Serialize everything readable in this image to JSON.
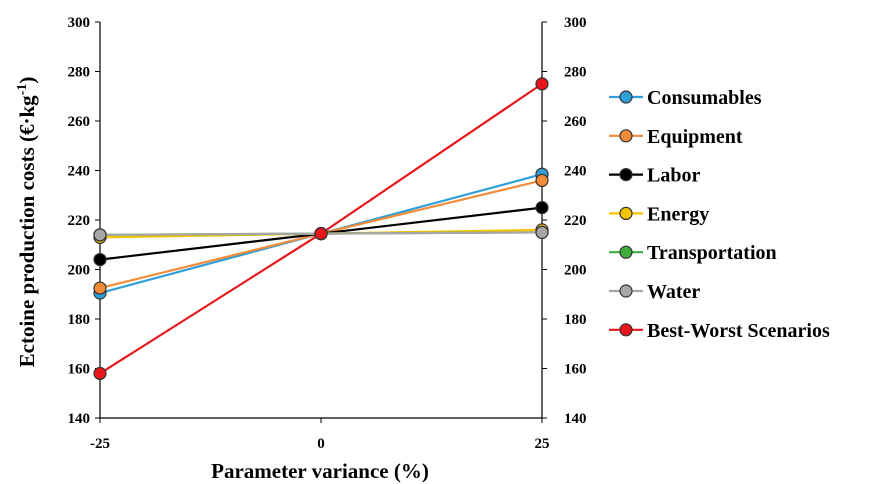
{
  "chart_data": {
    "type": "line",
    "title": "",
    "xlabel": "Parameter variance (%)",
    "ylabel": "Ectoine production  costs (€·kg",
    "ylabel_superscript": "-1",
    "ylabel_close": ")",
    "x": [
      -25,
      0,
      25
    ],
    "x_tick_labels": [
      "-25",
      "0",
      "25"
    ],
    "ylim": [
      140,
      300
    ],
    "y_ticks": [
      140,
      160,
      180,
      200,
      220,
      240,
      260,
      280,
      300
    ],
    "y_tick_labels": [
      "140",
      "160",
      "180",
      "200",
      "220",
      "240",
      "260",
      "280",
      "300"
    ],
    "secondary_y_axis": true,
    "grid": false,
    "legend_position": "right",
    "series": [
      {
        "name": "Consumables",
        "color": "#2E9FD8",
        "values": [
          190.5,
          214.5,
          238.5
        ]
      },
      {
        "name": "Equipment",
        "color": "#F28C38",
        "values": [
          192.5,
          214.5,
          236
        ]
      },
      {
        "name": "Labor",
        "color": "#000000",
        "values": [
          204,
          214.5,
          225
        ]
      },
      {
        "name": "Energy",
        "color": "#F5C400",
        "values": [
          213,
          214.5,
          216
        ]
      },
      {
        "name": "Transportation",
        "color": "#3FAE3F",
        "values": [
          214,
          214.5,
          215
        ]
      },
      {
        "name": "Water",
        "color": "#A6A6A6",
        "values": [
          214,
          214.5,
          215
        ]
      },
      {
        "name": "Best-Worst Scenarios",
        "color": "#E8161A",
        "values": [
          158,
          214.5,
          275
        ]
      }
    ]
  }
}
